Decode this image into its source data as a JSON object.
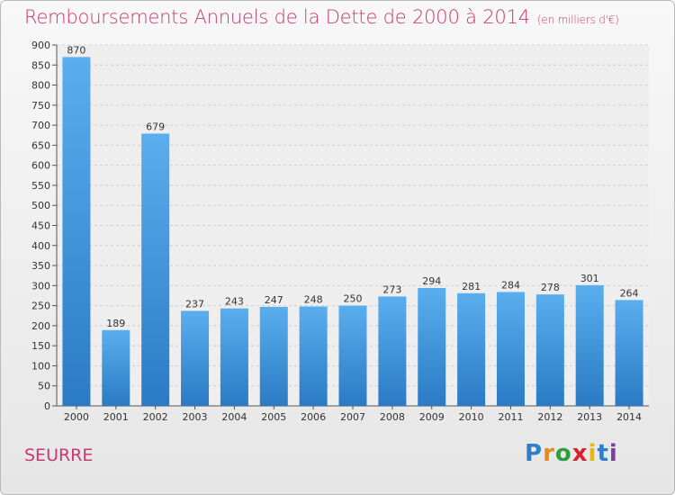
{
  "title": "Remboursements Annuels de la Dette de 2000 à 2014",
  "subtitle": "(en milliers d'€)",
  "commune": "SEURRE",
  "brand": {
    "letters": [
      "P",
      "r",
      "o",
      "x",
      "i",
      "t",
      "i"
    ],
    "colors": [
      "#2f7ec9",
      "#e88a1a",
      "#2f9e3a",
      "#d8232a",
      "#e3b90f",
      "#2f7ec9",
      "#7a3fa0"
    ]
  },
  "colors": {
    "accent": "#c9386e",
    "bar": "#3a92dc"
  },
  "chart_data": {
    "type": "bar",
    "title": "Remboursements Annuels de la Dette de 2000 à 2014",
    "subtitle": "(en milliers d'€)",
    "categories": [
      "2000",
      "2001",
      "2002",
      "2003",
      "2004",
      "2005",
      "2006",
      "2007",
      "2008",
      "2009",
      "2010",
      "2011",
      "2012",
      "2013",
      "2014"
    ],
    "values": [
      870,
      189,
      679,
      237,
      243,
      247,
      248,
      250,
      273,
      294,
      281,
      284,
      278,
      301,
      264
    ],
    "ylim": [
      0,
      900
    ],
    "yticks": [
      0,
      50,
      100,
      150,
      200,
      250,
      300,
      350,
      400,
      450,
      500,
      550,
      600,
      650,
      700,
      750,
      800,
      850,
      900
    ],
    "grid": true
  }
}
